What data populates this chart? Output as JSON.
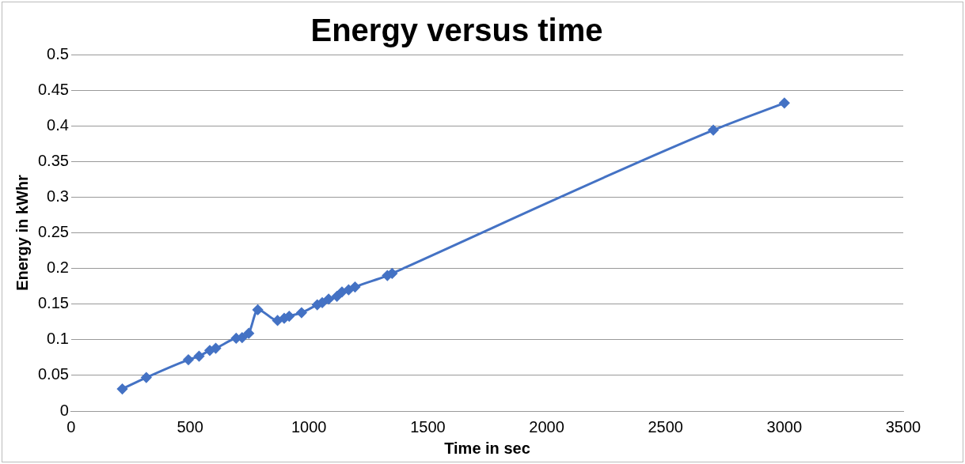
{
  "chart_data": {
    "type": "line",
    "title": "Energy versus time",
    "xlabel": "Time in sec",
    "ylabel": "Energy in kWhr",
    "series": [
      {
        "color": "#4472c4",
        "x": [
          215,
          316,
          493,
          538,
          583,
          608,
          694,
          719,
          747,
          785,
          868,
          896,
          917,
          969,
          1035,
          1056,
          1083,
          1118,
          1139,
          1167,
          1194,
          1330,
          1350,
          2701,
          3000
        ],
        "values": [
          0.031,
          0.047,
          0.072,
          0.077,
          0.085,
          0.088,
          0.102,
          0.103,
          0.109,
          0.142,
          0.127,
          0.13,
          0.133,
          0.138,
          0.149,
          0.152,
          0.157,
          0.161,
          0.167,
          0.17,
          0.174,
          0.19,
          0.193,
          0.394,
          0.432
        ]
      }
    ],
    "xlim": [
      0,
      3500
    ],
    "xticks": [
      0,
      500,
      1000,
      1500,
      2000,
      2500,
      3000,
      3500
    ],
    "ylim": [
      0,
      0.5
    ],
    "yticks": [
      0,
      0.05,
      0.1,
      0.15,
      0.2,
      0.25,
      0.3,
      0.35,
      0.4,
      0.45,
      0.5
    ],
    "grid": "y",
    "legend": false,
    "marker": "diamond",
    "line_style": "solid"
  }
}
